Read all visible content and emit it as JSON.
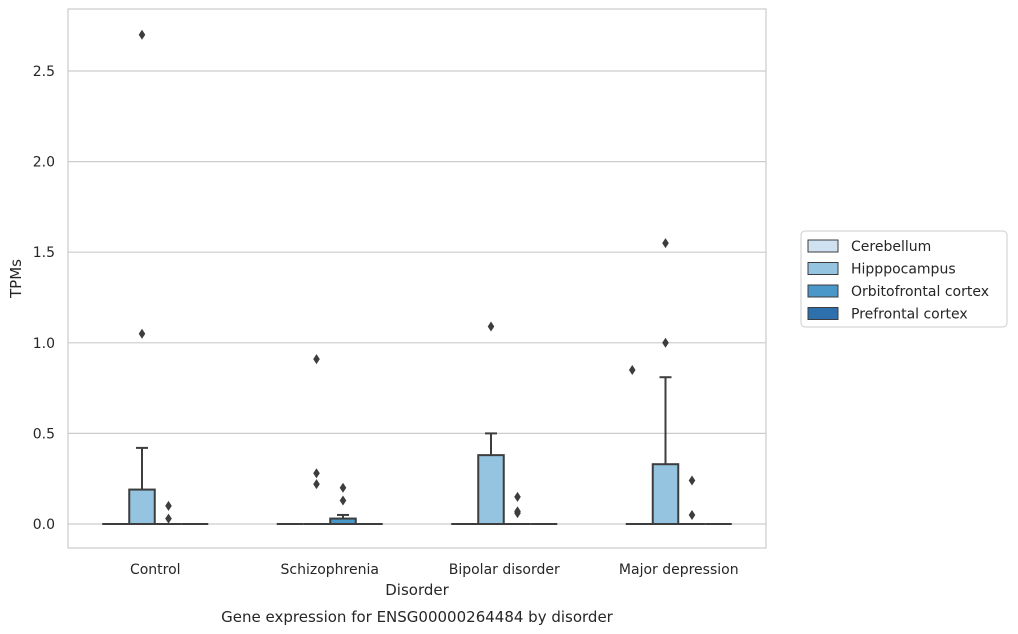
{
  "chart_data": {
    "type": "box",
    "xlabel": "Disorder",
    "ylabel": "TPMs",
    "caption": "Gene expression for ENSG00000264484 by disorder",
    "categories": [
      "Control",
      "Schizophrenia",
      "Bipolar disorder",
      "Major depression"
    ],
    "ylim": [
      -0.13,
      2.85
    ],
    "yticks": [
      0.0,
      0.5,
      1.0,
      1.5,
      2.0,
      2.5
    ],
    "ytick_labels": [
      "0.0",
      "0.5",
      "1.0",
      "1.5",
      "2.0",
      "2.5"
    ],
    "grid": "horizontal",
    "legend_placement": "right",
    "series": [
      {
        "name": "Cerebellum",
        "color": "#d0e1f2",
        "boxes": [
          {
            "q1": 0,
            "median": 0,
            "q3": 0,
            "whisker_low": 0,
            "whisker_high": 0,
            "outliers": []
          },
          {
            "q1": 0,
            "median": 0,
            "q3": 0,
            "whisker_low": 0,
            "whisker_high": 0,
            "outliers": []
          },
          {
            "q1": 0,
            "median": 0,
            "q3": 0,
            "whisker_low": 0,
            "whisker_high": 0,
            "outliers": []
          },
          {
            "q1": 0,
            "median": 0,
            "q3": 0,
            "whisker_low": 0,
            "whisker_high": 0,
            "outliers": []
          }
        ]
      },
      {
        "name": "Hipppocampus",
        "color": "#94c4df",
        "boxes": [
          {
            "q1": 0,
            "median": 0,
            "q3": 0.19,
            "whisker_low": 0,
            "whisker_high": 0.42,
            "outliers": [
              1.05,
              2.7
            ]
          },
          {
            "q1": 0,
            "median": 0,
            "q3": 0,
            "whisker_low": 0,
            "whisker_high": 0,
            "outliers": [
              0.22,
              0.28,
              0.91
            ]
          },
          {
            "q1": 0,
            "median": 0,
            "q3": 0.38,
            "whisker_low": 0,
            "whisker_high": 0.5,
            "outliers": [
              1.09
            ]
          },
          {
            "q1": 0,
            "median": 0,
            "q3": 0.33,
            "whisker_low": 0,
            "whisker_high": 0.81,
            "outliers": [
              1.0,
              1.55
            ]
          }
        ]
      },
      {
        "name": "Orbitofrontal cortex",
        "color": "#4a98c9",
        "boxes": [
          {
            "q1": 0,
            "median": 0,
            "q3": 0,
            "whisker_low": 0,
            "whisker_high": 0,
            "outliers": [
              0.03,
              0.1
            ]
          },
          {
            "q1": 0,
            "median": 0,
            "q3": 0.03,
            "whisker_low": 0,
            "whisker_high": 0.05,
            "outliers": [
              0.13,
              0.2
            ]
          },
          {
            "q1": 0,
            "median": 0,
            "q3": 0,
            "whisker_low": 0,
            "whisker_high": 0,
            "outliers": [
              0.06,
              0.07,
              0.15
            ]
          },
          {
            "q1": 0,
            "median": 0,
            "q3": 0,
            "whisker_low": 0,
            "whisker_high": 0,
            "outliers": [
              0.05,
              0.24
            ]
          }
        ]
      },
      {
        "name": "Prefrontal cortex",
        "color": "#2e6fae",
        "boxes": [
          {
            "q1": 0,
            "median": 0,
            "q3": 0,
            "whisker_low": 0,
            "whisker_high": 0,
            "outliers": []
          },
          {
            "q1": 0,
            "median": 0,
            "q3": 0,
            "whisker_low": 0,
            "whisker_high": 0,
            "outliers": []
          },
          {
            "q1": 0,
            "median": 0,
            "q3": 0,
            "whisker_low": 0,
            "whisker_high": 0,
            "outliers": []
          },
          {
            "q1": 0,
            "median": 0,
            "q3": 0,
            "whisker_low": 0,
            "whisker_high": 0,
            "outliers": []
          }
        ]
      }
    ],
    "extra_outliers": [
      {
        "category": 1,
        "series": 1,
        "value": 0.85,
        "note_shift": "left"
      }
    ]
  }
}
